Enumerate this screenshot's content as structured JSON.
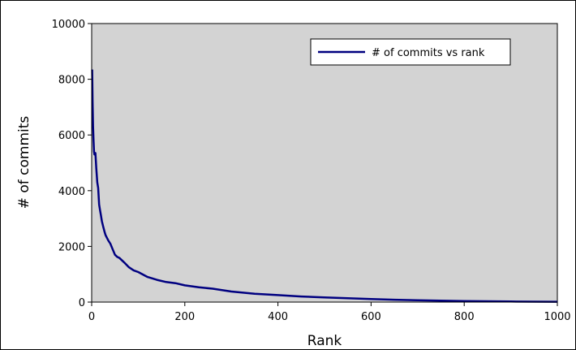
{
  "chart_data": {
    "type": "line",
    "title": "",
    "xlabel": "Rank",
    "ylabel": "# of commits",
    "xlim": [
      0,
      1000
    ],
    "ylim": [
      0,
      10000
    ],
    "x_ticks": [
      0,
      200,
      400,
      600,
      800,
      1000
    ],
    "y_ticks": [
      0,
      2000,
      4000,
      6000,
      8000,
      10000
    ],
    "grid": false,
    "background": "#d3d3d3",
    "legend_position": "top-right",
    "series": [
      {
        "name": "# of commits vs rank",
        "color": "#000080",
        "x": [
          1,
          2,
          3,
          4,
          5,
          6,
          8,
          10,
          12,
          14,
          16,
          18,
          20,
          22,
          25,
          28,
          30,
          33,
          36,
          40,
          45,
          50,
          55,
          60,
          70,
          80,
          90,
          100,
          120,
          140,
          160,
          180,
          200,
          230,
          260,
          300,
          350,
          400,
          450,
          500,
          550,
          600,
          650,
          700,
          750,
          800,
          850,
          900,
          950,
          1000
        ],
        "values": [
          8350,
          7200,
          6300,
          5800,
          5400,
          5300,
          5350,
          4800,
          4300,
          4100,
          3500,
          3300,
          3100,
          2900,
          2700,
          2500,
          2400,
          2300,
          2200,
          2100,
          1900,
          1700,
          1620,
          1580,
          1420,
          1250,
          1140,
          1080,
          900,
          800,
          720,
          680,
          600,
          530,
          480,
          380,
          300,
          250,
          200,
          170,
          140,
          110,
          85,
          65,
          50,
          38,
          28,
          20,
          15,
          12
        ]
      }
    ]
  }
}
